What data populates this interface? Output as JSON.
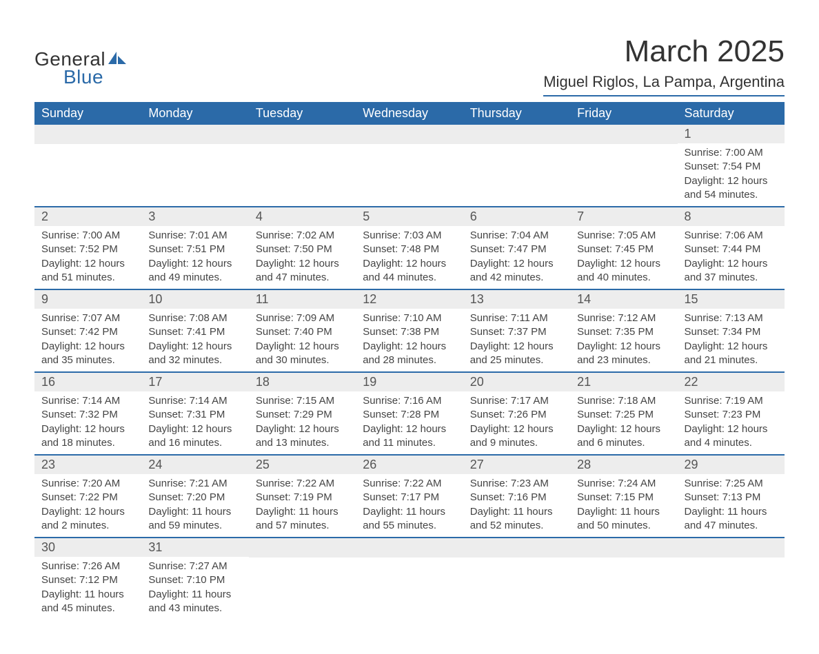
{
  "logo": {
    "line1": "General",
    "line2": "Blue"
  },
  "title": "March 2025",
  "location": "Miguel Riglos, La Pampa, Argentina",
  "colors": {
    "header_bg": "#2b6aa8",
    "header_fg": "#ffffff",
    "daynum_bg": "#ededed",
    "text": "#444444",
    "border": "#2b6aa8"
  },
  "weekdays": [
    "Sunday",
    "Monday",
    "Tuesday",
    "Wednesday",
    "Thursday",
    "Friday",
    "Saturday"
  ],
  "weeks": [
    [
      null,
      null,
      null,
      null,
      null,
      null,
      {
        "n": 1,
        "sunrise": "7:00 AM",
        "sunset": "7:54 PM",
        "daylight": "12 hours and 54 minutes."
      }
    ],
    [
      {
        "n": 2,
        "sunrise": "7:00 AM",
        "sunset": "7:52 PM",
        "daylight": "12 hours and 51 minutes."
      },
      {
        "n": 3,
        "sunrise": "7:01 AM",
        "sunset": "7:51 PM",
        "daylight": "12 hours and 49 minutes."
      },
      {
        "n": 4,
        "sunrise": "7:02 AM",
        "sunset": "7:50 PM",
        "daylight": "12 hours and 47 minutes."
      },
      {
        "n": 5,
        "sunrise": "7:03 AM",
        "sunset": "7:48 PM",
        "daylight": "12 hours and 44 minutes."
      },
      {
        "n": 6,
        "sunrise": "7:04 AM",
        "sunset": "7:47 PM",
        "daylight": "12 hours and 42 minutes."
      },
      {
        "n": 7,
        "sunrise": "7:05 AM",
        "sunset": "7:45 PM",
        "daylight": "12 hours and 40 minutes."
      },
      {
        "n": 8,
        "sunrise": "7:06 AM",
        "sunset": "7:44 PM",
        "daylight": "12 hours and 37 minutes."
      }
    ],
    [
      {
        "n": 9,
        "sunrise": "7:07 AM",
        "sunset": "7:42 PM",
        "daylight": "12 hours and 35 minutes."
      },
      {
        "n": 10,
        "sunrise": "7:08 AM",
        "sunset": "7:41 PM",
        "daylight": "12 hours and 32 minutes."
      },
      {
        "n": 11,
        "sunrise": "7:09 AM",
        "sunset": "7:40 PM",
        "daylight": "12 hours and 30 minutes."
      },
      {
        "n": 12,
        "sunrise": "7:10 AM",
        "sunset": "7:38 PM",
        "daylight": "12 hours and 28 minutes."
      },
      {
        "n": 13,
        "sunrise": "7:11 AM",
        "sunset": "7:37 PM",
        "daylight": "12 hours and 25 minutes."
      },
      {
        "n": 14,
        "sunrise": "7:12 AM",
        "sunset": "7:35 PM",
        "daylight": "12 hours and 23 minutes."
      },
      {
        "n": 15,
        "sunrise": "7:13 AM",
        "sunset": "7:34 PM",
        "daylight": "12 hours and 21 minutes."
      }
    ],
    [
      {
        "n": 16,
        "sunrise": "7:14 AM",
        "sunset": "7:32 PM",
        "daylight": "12 hours and 18 minutes."
      },
      {
        "n": 17,
        "sunrise": "7:14 AM",
        "sunset": "7:31 PM",
        "daylight": "12 hours and 16 minutes."
      },
      {
        "n": 18,
        "sunrise": "7:15 AM",
        "sunset": "7:29 PM",
        "daylight": "12 hours and 13 minutes."
      },
      {
        "n": 19,
        "sunrise": "7:16 AM",
        "sunset": "7:28 PM",
        "daylight": "12 hours and 11 minutes."
      },
      {
        "n": 20,
        "sunrise": "7:17 AM",
        "sunset": "7:26 PM",
        "daylight": "12 hours and 9 minutes."
      },
      {
        "n": 21,
        "sunrise": "7:18 AM",
        "sunset": "7:25 PM",
        "daylight": "12 hours and 6 minutes."
      },
      {
        "n": 22,
        "sunrise": "7:19 AM",
        "sunset": "7:23 PM",
        "daylight": "12 hours and 4 minutes."
      }
    ],
    [
      {
        "n": 23,
        "sunrise": "7:20 AM",
        "sunset": "7:22 PM",
        "daylight": "12 hours and 2 minutes."
      },
      {
        "n": 24,
        "sunrise": "7:21 AM",
        "sunset": "7:20 PM",
        "daylight": "11 hours and 59 minutes."
      },
      {
        "n": 25,
        "sunrise": "7:22 AM",
        "sunset": "7:19 PM",
        "daylight": "11 hours and 57 minutes."
      },
      {
        "n": 26,
        "sunrise": "7:22 AM",
        "sunset": "7:17 PM",
        "daylight": "11 hours and 55 minutes."
      },
      {
        "n": 27,
        "sunrise": "7:23 AM",
        "sunset": "7:16 PM",
        "daylight": "11 hours and 52 minutes."
      },
      {
        "n": 28,
        "sunrise": "7:24 AM",
        "sunset": "7:15 PM",
        "daylight": "11 hours and 50 minutes."
      },
      {
        "n": 29,
        "sunrise": "7:25 AM",
        "sunset": "7:13 PM",
        "daylight": "11 hours and 47 minutes."
      }
    ],
    [
      {
        "n": 30,
        "sunrise": "7:26 AM",
        "sunset": "7:12 PM",
        "daylight": "11 hours and 45 minutes."
      },
      {
        "n": 31,
        "sunrise": "7:27 AM",
        "sunset": "7:10 PM",
        "daylight": "11 hours and 43 minutes."
      },
      null,
      null,
      null,
      null,
      null
    ]
  ],
  "labels": {
    "sunrise": "Sunrise:",
    "sunset": "Sunset:",
    "daylight": "Daylight:"
  }
}
